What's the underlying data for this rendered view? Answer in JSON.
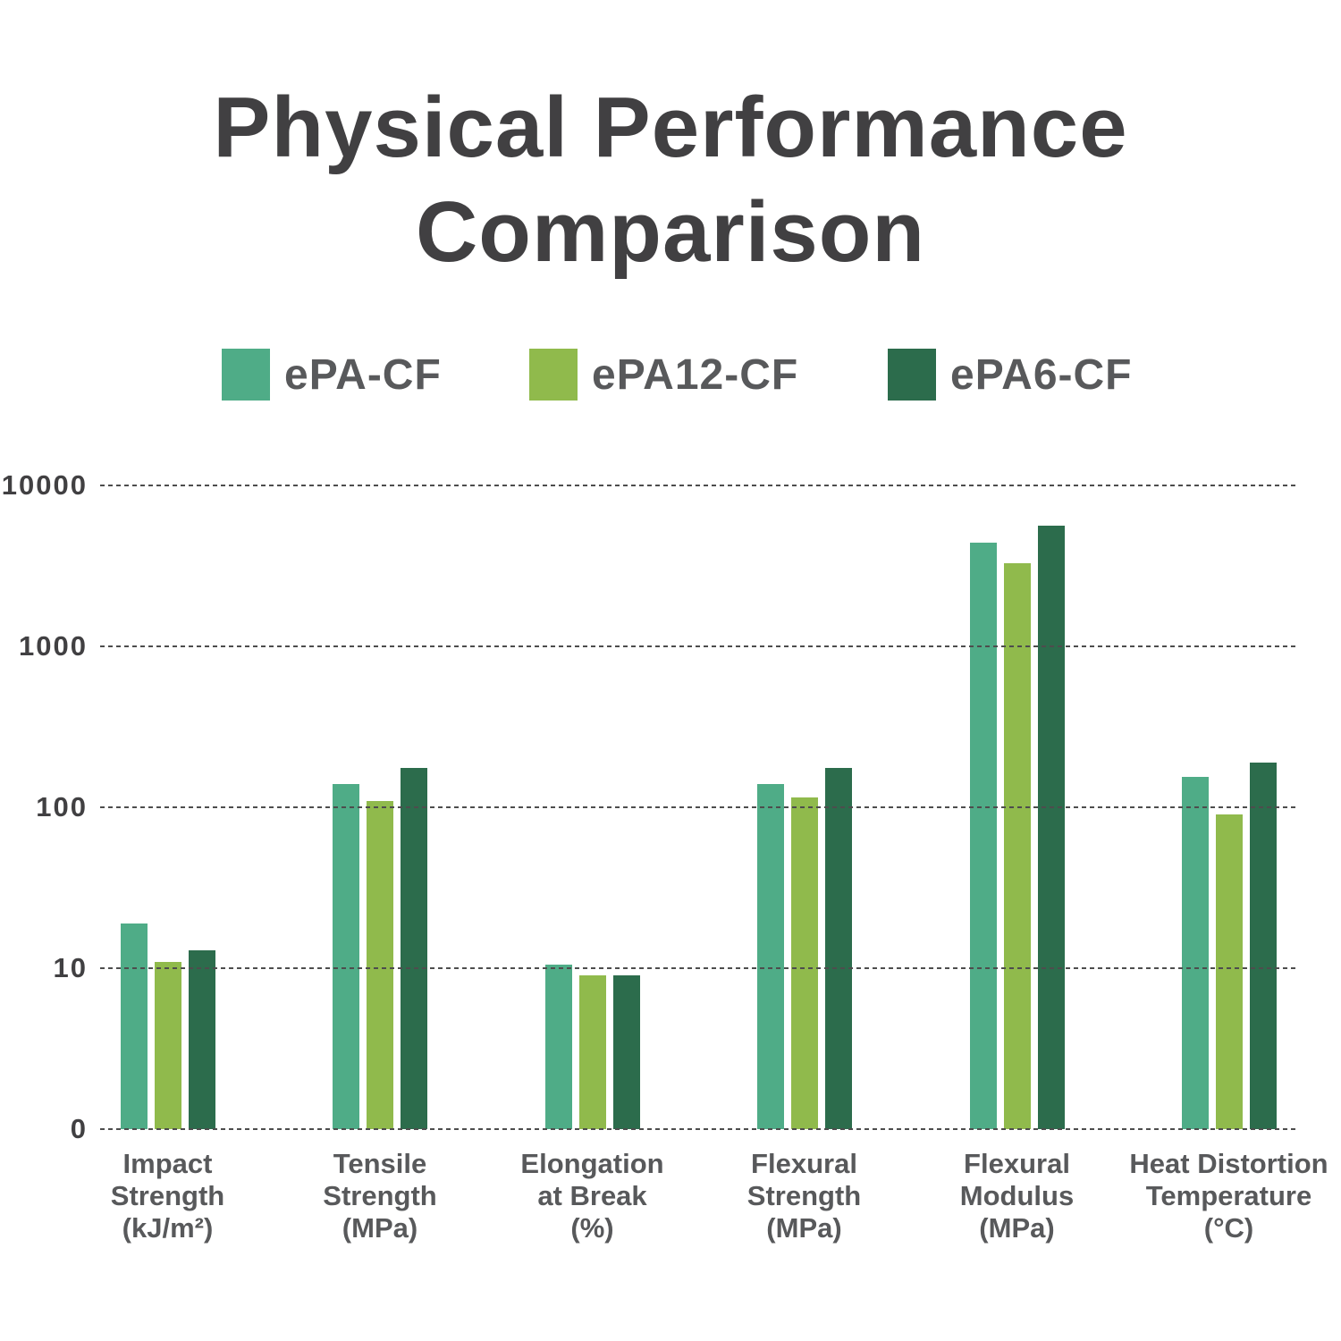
{
  "title": {
    "line1": "Physical Performance",
    "line2": "Comparison",
    "color": "#414042"
  },
  "legend": {
    "items": [
      {
        "label": "ePA-CF",
        "color": "#4fac87"
      },
      {
        "label": "ePA12-CF",
        "color": "#90ba4c"
      },
      {
        "label": "ePA6-CF",
        "color": "#2c6c4c"
      }
    ]
  },
  "chart_data": {
    "type": "bar",
    "title": "Physical Performance Comparison",
    "y_scale": "log",
    "ylim": [
      1,
      10000
    ],
    "y_ticks": [
      {
        "label": "0",
        "value": 1
      },
      {
        "label": "10",
        "value": 10
      },
      {
        "label": "100",
        "value": 100
      },
      {
        "label": "1000",
        "value": 1000
      },
      {
        "label": "10000",
        "value": 10000
      }
    ],
    "grid": "horizontal-dashed",
    "legend_position": "top",
    "categories": [
      {
        "id": "impact-strength",
        "lines": [
          "Impact",
          "Strength",
          "(kJ/m²)"
        ]
      },
      {
        "id": "tensile-strength",
        "lines": [
          "Tensile",
          "Strength",
          "(MPa)"
        ]
      },
      {
        "id": "elongation-at-break",
        "lines": [
          "Elongation",
          "at Break",
          "(%)"
        ]
      },
      {
        "id": "flexural-strength",
        "lines": [
          "Flexural",
          "Strength",
          "(MPa)"
        ]
      },
      {
        "id": "flexural-modulus",
        "lines": [
          "Flexural",
          "Modulus",
          "(MPa)"
        ]
      },
      {
        "id": "heat-distortion",
        "lines": [
          "Heat Distortion",
          "Temperature",
          "(°C)"
        ]
      }
    ],
    "series": [
      {
        "name": "ePA-CF",
        "color": "#4fac87",
        "values": [
          19,
          140,
          10.5,
          140,
          4400,
          155
        ]
      },
      {
        "name": "ePA12-CF",
        "color": "#90ba4c",
        "values": [
          11,
          110,
          9,
          115,
          3300,
          90
        ]
      },
      {
        "name": "ePA6-CF",
        "color": "#2c6c4c",
        "values": [
          13,
          175,
          9,
          175,
          5600,
          190
        ]
      }
    ]
  },
  "colors": {
    "background": "#ffffff",
    "grid": "#4d4d4d",
    "axis_text": "#414042",
    "category_text": "#58595b",
    "legend_text": "#58595b"
  }
}
